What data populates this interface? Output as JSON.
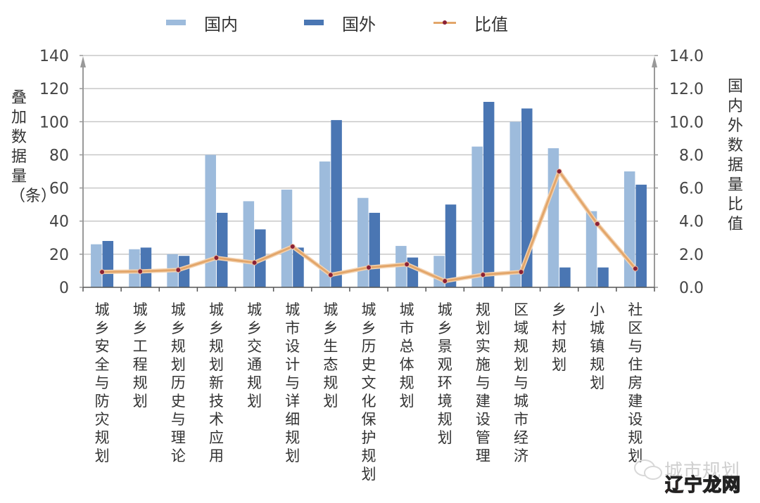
{
  "legend": {
    "domestic": "国内",
    "foreign": "国外",
    "ratio": "比值"
  },
  "axes": {
    "left_label": "叠加数据量（条）",
    "right_label": "国内外数据量比值",
    "left_ticks": [
      "0",
      "20",
      "40",
      "60",
      "80",
      "100",
      "120",
      "140"
    ],
    "right_ticks": [
      "0.0",
      "2.0",
      "4.0",
      "6.0",
      "8.0",
      "10.0",
      "12.0",
      "14.0"
    ]
  },
  "colors": {
    "domestic": "#9dbbdc",
    "foreign": "#4a76b3",
    "ratio_line": "#e3a66a",
    "ratio_marker": "#8a2035",
    "grid": "#c8c8c8",
    "axis": "#999999"
  },
  "watermark": {
    "source": "城市规划",
    "brand_red": "辽宁",
    "brand_white": "龙网"
  },
  "chart_data": {
    "type": "bar",
    "title": "",
    "xlabel": "",
    "ylabel": "叠加数据量（条）",
    "y2label": "国内外数据量比值",
    "ylim": [
      0,
      140
    ],
    "y2lim": [
      0,
      14
    ],
    "grid": true,
    "legend_position": "top",
    "categories": [
      "城乡安全与防灾规划",
      "城乡工程规划",
      "城乡规划历史与理论",
      "城乡规划新技术应用",
      "城乡交通规划",
      "城市设计与详细规划",
      "城乡生态规划",
      "城乡历史文化保护规划",
      "城市总体规划",
      "城乡景观环境规划",
      "规划实施与建设管理",
      "区域规划与城市经济",
      "乡村规划",
      "小城镇规划",
      "社区与住房建设规划"
    ],
    "series": [
      {
        "name": "国内",
        "type": "bar",
        "axis": "left",
        "values": [
          26,
          23,
          20,
          80,
          52,
          59,
          76,
          54,
          25,
          19,
          85,
          100,
          84,
          46,
          70
        ]
      },
      {
        "name": "国外",
        "type": "bar",
        "axis": "left",
        "values": [
          28,
          24,
          19,
          45,
          35,
          24,
          101,
          45,
          18,
          50,
          112,
          108,
          12,
          12,
          62
        ]
      },
      {
        "name": "比值",
        "type": "line",
        "axis": "right",
        "values": [
          0.93,
          0.96,
          1.05,
          1.78,
          1.49,
          2.46,
          0.75,
          1.2,
          1.39,
          0.38,
          0.76,
          0.93,
          7.0,
          3.83,
          1.13
        ]
      }
    ]
  }
}
